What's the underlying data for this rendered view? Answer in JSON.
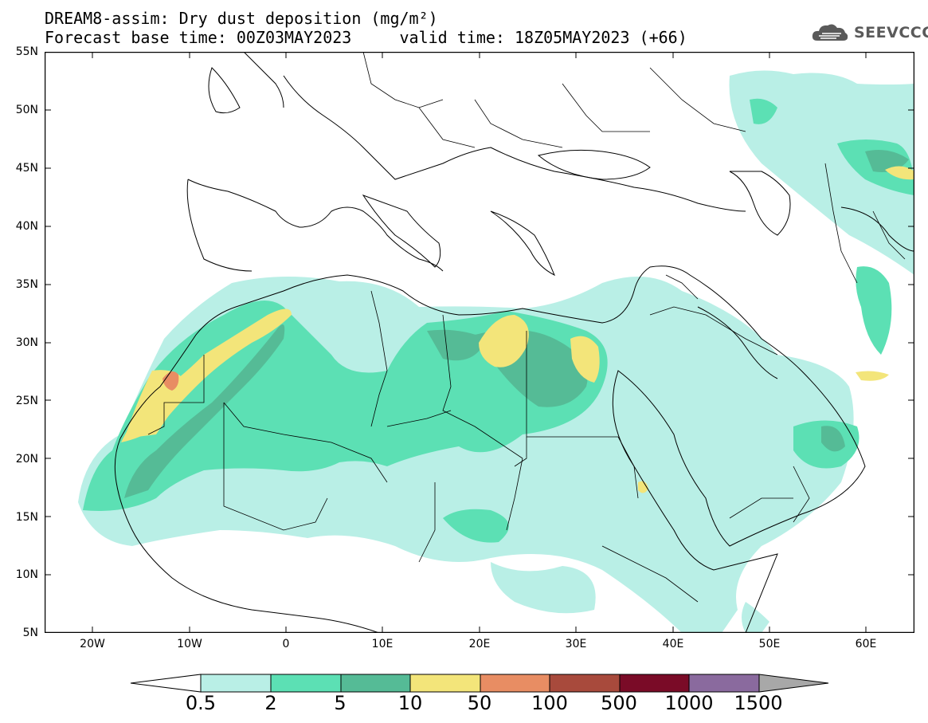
{
  "title": {
    "line1": "DREAM8-assim: Dry dust deposition (mg/m²)",
    "line2": "Forecast base time: 00Z03MAY2023     valid time: 18Z05MAY2023 (+66)"
  },
  "logo": {
    "text": "SEEVCCC",
    "icon": "cloud-logo-icon"
  },
  "map": {
    "lat_labels": [
      "55N",
      "50N",
      "45N",
      "40N",
      "35N",
      "30N",
      "25N",
      "20N",
      "15N",
      "10N",
      "5N"
    ],
    "lon_labels": [
      "20W",
      "10W",
      "0",
      "10E",
      "20E",
      "30E",
      "40E",
      "50E",
      "60E"
    ],
    "extent": {
      "lon_min": -25,
      "lon_max": 65,
      "lat_min": 5,
      "lat_max": 55
    }
  },
  "colorbar": {
    "labels": [
      "0.5",
      "2",
      "5",
      "10",
      "50",
      "100",
      "500",
      "1000",
      "1500"
    ],
    "colors": {
      "below": "#ffffff",
      "c1": "#b9efe6",
      "c2": "#5ce0b4",
      "c3": "#55bb96",
      "c4": "#f3e57a",
      "c5": "#e88d63",
      "c6": "#a84a3c",
      "c7": "#7a0b27",
      "c8": "#8a6a9e",
      "above": "#a8a8a8"
    }
  }
}
